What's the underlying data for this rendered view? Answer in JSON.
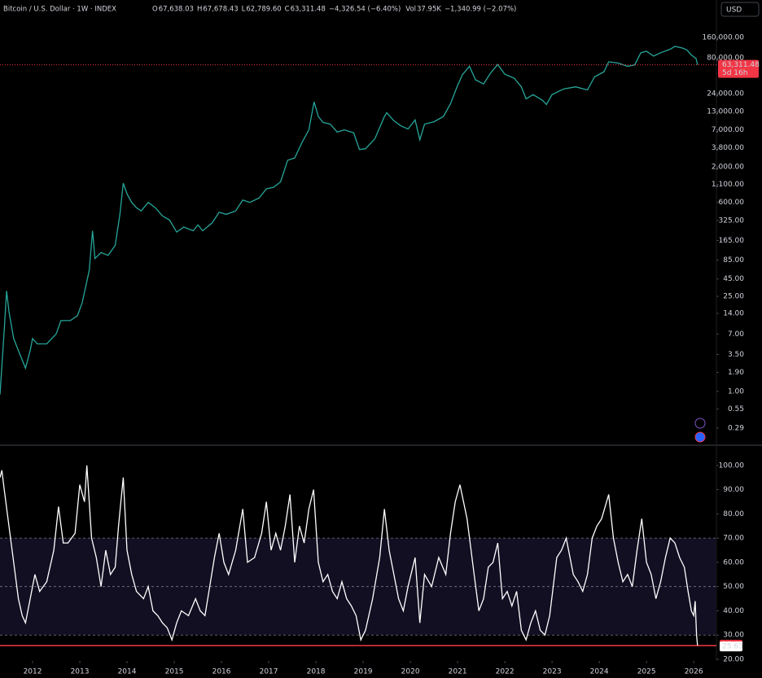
{
  "header": {
    "symbol": "Bitcoin / U.S. Dollar · 1W · INDEX",
    "ohlc": [
      {
        "label": "O",
        "value": "67,638.03"
      },
      {
        "label": "H",
        "value": "67,678.43"
      },
      {
        "label": "L",
        "value": "62,789.60"
      },
      {
        "label": "C",
        "value": "63,311.48"
      }
    ],
    "change": "−4,326.54 (−6.40%)",
    "vol_label": "Vol",
    "vol": "37.95K",
    "vol_change": "−1,340.99 (−2.07%)",
    "currency": "USD"
  },
  "chart_data": [
    {
      "type": "line",
      "log_scale": true,
      "color": "#26a69a",
      "x": [
        2011.31,
        2011.4,
        2011.45,
        2011.5,
        2011.6,
        2011.7,
        2011.85,
        2011.95,
        2012.0,
        2012.1,
        2012.3,
        2012.5,
        2012.6,
        2012.8,
        2012.95,
        2013.05,
        2013.2,
        2013.27,
        2013.32,
        2013.45,
        2013.6,
        2013.75,
        2013.85,
        2013.92,
        2014.0,
        2014.1,
        2014.2,
        2014.3,
        2014.45,
        2014.6,
        2014.75,
        2014.9,
        2015.05,
        2015.2,
        2015.4,
        2015.5,
        2015.6,
        2015.8,
        2015.95,
        2016.1,
        2016.3,
        2016.45,
        2016.6,
        2016.8,
        2016.95,
        2017.1,
        2017.25,
        2017.4,
        2017.55,
        2017.7,
        2017.85,
        2017.96,
        2018.05,
        2018.15,
        2018.3,
        2018.45,
        2018.6,
        2018.8,
        2018.92,
        2019.05,
        2019.25,
        2019.45,
        2019.5,
        2019.65,
        2019.8,
        2019.95,
        2020.1,
        2020.2,
        2020.3,
        2020.5,
        2020.7,
        2020.85,
        2020.98,
        2021.1,
        2021.25,
        2021.38,
        2021.55,
        2021.7,
        2021.85,
        2022.0,
        2022.2,
        2022.35,
        2022.45,
        2022.6,
        2022.8,
        2022.88,
        2023.0,
        2023.25,
        2023.5,
        2023.75,
        2023.9,
        2024.1,
        2024.2,
        2024.4,
        2024.6,
        2024.75,
        2024.88,
        2025.0,
        2025.15,
        2025.3,
        2025.5,
        2025.6,
        2025.75,
        2025.85,
        2025.95,
        2026.05,
        2026.08
      ],
      "values": [
        0.9,
        8,
        30,
        15,
        6,
        4,
        2.2,
        4,
        6,
        5,
        5,
        7,
        11,
        11,
        13,
        20,
        60,
        230,
        90,
        110,
        100,
        140,
        400,
        1150,
        800,
        600,
        500,
        450,
        600,
        500,
        380,
        330,
        220,
        260,
        230,
        280,
        230,
        300,
        430,
        400,
        450,
        650,
        600,
        700,
        950,
        1000,
        1200,
        2500,
        2700,
        4500,
        7000,
        18000,
        11000,
        9000,
        8500,
        6500,
        7000,
        6300,
        3600,
        3700,
        5200,
        11000,
        12500,
        9500,
        8000,
        7200,
        9800,
        5000,
        8500,
        9200,
        11000,
        17000,
        29000,
        45000,
        60000,
        38000,
        33000,
        48000,
        64000,
        46000,
        40000,
        30000,
        20000,
        23000,
        19000,
        16500,
        23000,
        28000,
        30000,
        27000,
        42000,
        50000,
        70000,
        67000,
        60000,
        63000,
        95000,
        100000,
        85000,
        95000,
        107000,
        118000,
        112000,
        105000,
        88000,
        78000,
        63311.48
      ],
      "xlim": [
        2011.31,
        2026.48
      ],
      "ylim": [
        0.171,
        567000
      ],
      "yticks": [
        {
          "value": 160000,
          "label": "160,000.00"
        },
        {
          "value": 80000,
          "label": "80,000.00"
        },
        {
          "value": 24000,
          "label": "24,000.00"
        },
        {
          "value": 13000,
          "label": "13,000.00"
        },
        {
          "value": 7000,
          "label": "7,000.00"
        },
        {
          "value": 3800,
          "label": "3,800.00"
        },
        {
          "value": 2000,
          "label": "2,000.00"
        },
        {
          "value": 1100,
          "label": "1,100.00"
        },
        {
          "value": 600,
          "label": "600.00"
        },
        {
          "value": 325,
          "label": "325.00"
        },
        {
          "value": 165,
          "label": "165.00"
        },
        {
          "value": 85,
          "label": "85.00"
        },
        {
          "value": 45,
          "label": "45.00"
        },
        {
          "value": 25,
          "label": "25.00"
        },
        {
          "value": 14,
          "label": "14.00"
        },
        {
          "value": 7,
          "label": "7.00"
        },
        {
          "value": 3.5,
          "label": "3.50"
        },
        {
          "value": 1.9,
          "label": "1.90"
        },
        {
          "value": 1,
          "label": "1.00"
        },
        {
          "value": 0.55,
          "label": "0.55"
        },
        {
          "value": 0.29,
          "label": "0.29"
        }
      ],
      "last_label": "63,311.48",
      "countdown": "5d 16h",
      "last_color": "#f23645"
    },
    {
      "type": "line",
      "color": "#ffffff",
      "x": [
        2011.31,
        2011.35,
        2011.4,
        2011.5,
        2011.6,
        2011.7,
        2011.78,
        2011.85,
        2011.95,
        2012.05,
        2012.15,
        2012.3,
        2012.45,
        2012.55,
        2012.65,
        2012.75,
        2012.9,
        2013.0,
        2013.1,
        2013.15,
        2013.25,
        2013.35,
        2013.45,
        2013.55,
        2013.65,
        2013.75,
        2013.82,
        2013.92,
        2014.0,
        2014.1,
        2014.2,
        2014.35,
        2014.45,
        2014.55,
        2014.65,
        2014.75,
        2014.85,
        2014.95,
        2015.05,
        2015.15,
        2015.3,
        2015.45,
        2015.55,
        2015.65,
        2015.75,
        2015.85,
        2015.95,
        2016.05,
        2016.15,
        2016.3,
        2016.45,
        2016.55,
        2016.7,
        2016.85,
        2016.95,
        2017.05,
        2017.15,
        2017.25,
        2017.35,
        2017.45,
        2017.55,
        2017.65,
        2017.75,
        2017.85,
        2017.95,
        2018.05,
        2018.15,
        2018.25,
        2018.35,
        2018.45,
        2018.55,
        2018.65,
        2018.75,
        2018.85,
        2018.95,
        2019.05,
        2019.2,
        2019.35,
        2019.45,
        2019.55,
        2019.65,
        2019.75,
        2019.85,
        2019.95,
        2020.1,
        2020.2,
        2020.3,
        2020.45,
        2020.6,
        2020.75,
        2020.85,
        2020.95,
        2021.05,
        2021.2,
        2021.35,
        2021.45,
        2021.55,
        2021.65,
        2021.75,
        2021.85,
        2021.95,
        2022.05,
        2022.15,
        2022.25,
        2022.35,
        2022.45,
        2022.55,
        2022.65,
        2022.75,
        2022.85,
        2022.95,
        2023.1,
        2023.2,
        2023.3,
        2023.45,
        2023.55,
        2023.65,
        2023.75,
        2023.85,
        2023.95,
        2024.05,
        2024.2,
        2024.3,
        2024.4,
        2024.5,
        2024.6,
        2024.7,
        2024.8,
        2024.9,
        2025.0,
        2025.1,
        2025.2,
        2025.3,
        2025.4,
        2025.5,
        2025.6,
        2025.7,
        2025.8,
        2025.88,
        2025.95,
        2026.0,
        2026.03,
        2026.06,
        2026.08
      ],
      "values": [
        95,
        98,
        90,
        75,
        60,
        45,
        38,
        35,
        45,
        55,
        48,
        52,
        65,
        83,
        68,
        68,
        72,
        92,
        85,
        100,
        70,
        62,
        50,
        65,
        55,
        58,
        75,
        95,
        65,
        55,
        48,
        45,
        50,
        40,
        38,
        35,
        33,
        28,
        35,
        40,
        38,
        45,
        40,
        38,
        50,
        62,
        72,
        60,
        55,
        65,
        82,
        60,
        62,
        72,
        85,
        65,
        72,
        65,
        75,
        88,
        60,
        75,
        68,
        82,
        90,
        60,
        52,
        55,
        48,
        45,
        52,
        45,
        42,
        38,
        28,
        32,
        45,
        62,
        82,
        65,
        55,
        45,
        40,
        50,
        62,
        35,
        55,
        50,
        62,
        55,
        72,
        85,
        92,
        78,
        55,
        40,
        45,
        58,
        60,
        68,
        45,
        48,
        42,
        48,
        32,
        28,
        35,
        40,
        32,
        30,
        38,
        62,
        65,
        70,
        55,
        52,
        48,
        55,
        70,
        75,
        78,
        88,
        70,
        60,
        52,
        55,
        50,
        65,
        78,
        60,
        55,
        45,
        52,
        62,
        70,
        68,
        62,
        58,
        48,
        40,
        38,
        44,
        30,
        25.67
      ],
      "xlim": [
        2011.31,
        2026.48
      ],
      "ylim": [
        19.33,
        108
      ],
      "yticks": [
        {
          "value": 100,
          "label": "100.00"
        },
        {
          "value": 90,
          "label": "90.00"
        },
        {
          "value": 80,
          "label": "80.00"
        },
        {
          "value": 70,
          "label": "70.00"
        },
        {
          "value": 60,
          "label": "60.00"
        },
        {
          "value": 50,
          "label": "50.00"
        },
        {
          "value": 40,
          "label": "40.00"
        },
        {
          "value": 30,
          "label": "30.00"
        },
        {
          "value": 20,
          "label": "20.00"
        }
      ],
      "xticks": [
        2012,
        2013,
        2014,
        2015,
        2016,
        2017,
        2018,
        2019,
        2020,
        2021,
        2022,
        2023,
        2024,
        2025,
        2026
      ],
      "band": [
        30,
        70
      ],
      "levels": [
        70,
        50,
        30
      ],
      "hline": 25.63,
      "hline_color": "#f23645"
    }
  ]
}
